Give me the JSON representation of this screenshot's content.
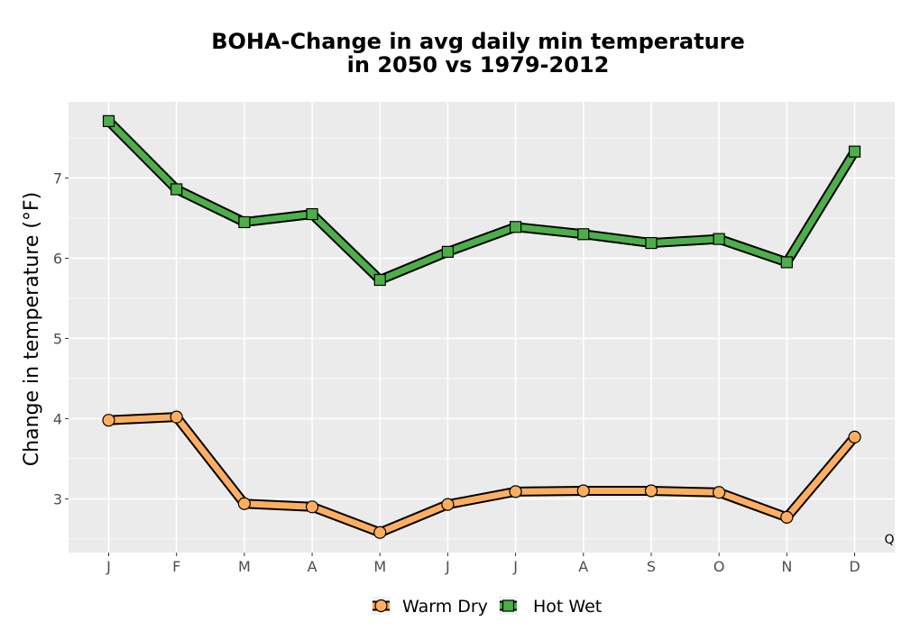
{
  "chart_data": {
    "type": "line",
    "title": [
      "BOHA-Change in avg daily min temperature",
      "in 2050 vs 1979-2012"
    ],
    "xlabel": "",
    "ylabel": "Change in temperature (°F)",
    "categories": [
      "J",
      "F",
      "M",
      "A",
      "M",
      "J",
      "J",
      "A",
      "S",
      "O",
      "N",
      "D"
    ],
    "ylim": [
      2.33,
      7.95
    ],
    "yticks": [
      3,
      4,
      5,
      6,
      7
    ],
    "grid": true,
    "legend_position": "bottom",
    "series": [
      {
        "name": "Warm Dry",
        "color": "#fdae61",
        "marker": "circle",
        "values": [
          3.98,
          4.02,
          2.94,
          2.9,
          2.58,
          2.93,
          3.09,
          3.1,
          3.1,
          3.08,
          2.77,
          3.77
        ]
      },
      {
        "name": "Hot Wet",
        "color": "#4daf4a",
        "marker": "square",
        "values": [
          7.71,
          6.86,
          6.45,
          6.55,
          5.73,
          6.08,
          6.39,
          6.3,
          6.19,
          6.24,
          5.95,
          7.33
        ]
      }
    ],
    "annotation": "Q"
  }
}
